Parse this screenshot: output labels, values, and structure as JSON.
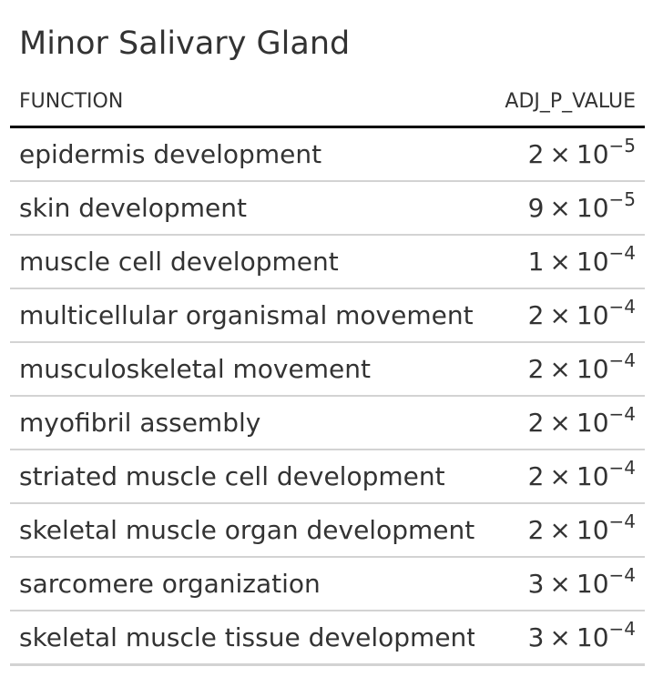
{
  "table": {
    "title": "Minor Salivary Gland",
    "columns": {
      "function": "FUNCTION",
      "adj_p_value": "ADJ_P_VALUE"
    },
    "rows": [
      {
        "function": "epidermis development",
        "mantissa": "2",
        "times": "×",
        "base": "10",
        "exponent": "−5"
      },
      {
        "function": "skin development",
        "mantissa": "9",
        "times": "×",
        "base": "10",
        "exponent": "−5"
      },
      {
        "function": "muscle cell development",
        "mantissa": "1",
        "times": "×",
        "base": "10",
        "exponent": "−4"
      },
      {
        "function": "multicellular organismal movement",
        "mantissa": "2",
        "times": "×",
        "base": "10",
        "exponent": "−4"
      },
      {
        "function": "musculoskeletal movement",
        "mantissa": "2",
        "times": "×",
        "base": "10",
        "exponent": "−4"
      },
      {
        "function": "myofibril assembly",
        "mantissa": "2",
        "times": "×",
        "base": "10",
        "exponent": "−4"
      },
      {
        "function": "striated muscle cell development",
        "mantissa": "2",
        "times": "×",
        "base": "10",
        "exponent": "−4"
      },
      {
        "function": "skeletal muscle organ development",
        "mantissa": "2",
        "times": "×",
        "base": "10",
        "exponent": "−4"
      },
      {
        "function": "sarcomere organization",
        "mantissa": "3",
        "times": "×",
        "base": "10",
        "exponent": "−4"
      },
      {
        "function": "skeletal muscle tissue development",
        "mantissa": "3",
        "times": "×",
        "base": "10",
        "exponent": "−4"
      }
    ]
  }
}
